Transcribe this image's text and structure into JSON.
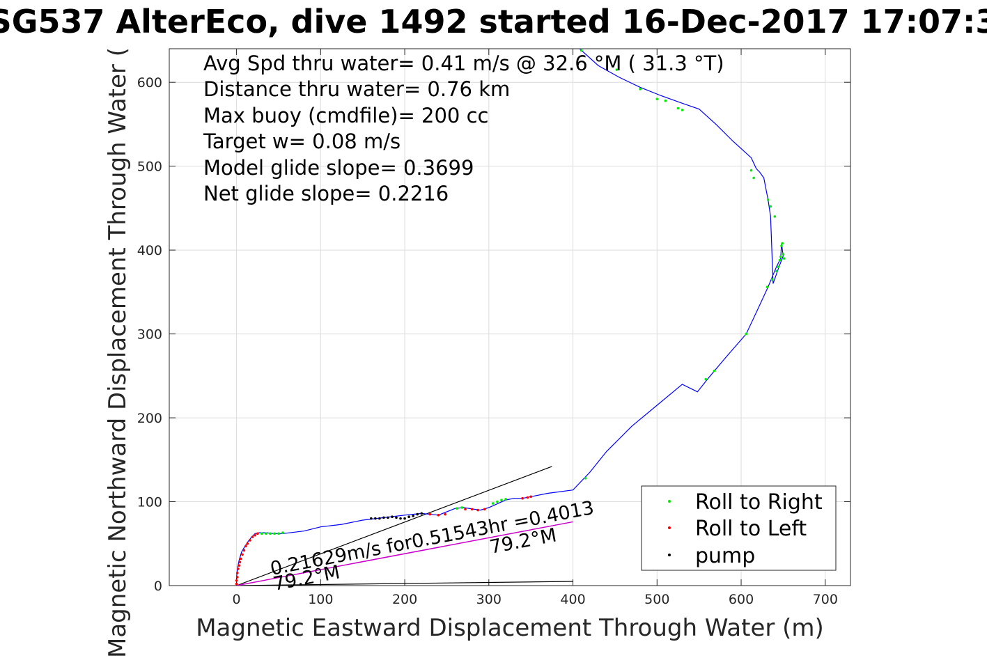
{
  "title": "SG537 AlterEco, dive 1492 started 16-Dec-2017 17:07:3",
  "annotations": [
    "Avg Spd thru water=  0.41 m/s @  32.6 °M ( 31.3 °T)",
    "Distance thru water=  0.76 km",
    "Max buoy (cmdfile)= 200 cc",
    "Target w= 0.08 m/s",
    "Model glide slope= 0.3699",
    "Net glide slope= 0.2216"
  ],
  "plot_texts": {
    "current": "0.21629m/s for0.51543hr =0.4013",
    "heading_1": "79.2°M",
    "heading_2": "79.2°M"
  },
  "legend": {
    "right": "Roll to Right",
    "left": "Roll to Left",
    "pump": "pump"
  },
  "colors": {
    "track": "#0000ff",
    "roll_right": "#00ee00",
    "roll_left": "#ff0000",
    "pump": "#000000",
    "current_line": "#cc00cc",
    "grid": "#dcdcdc"
  },
  "chart_data": {
    "type": "scatter",
    "xlabel": "Magnetic Eastward Displacement Through Water (m)",
    "ylabel": "Magnetic Northward Displacement Through Water (",
    "xlim": [
      -80,
      730
    ],
    "ylim": [
      0,
      640
    ],
    "xticks": [
      0,
      100,
      200,
      300,
      400,
      500,
      600,
      700
    ],
    "yticks": [
      0,
      100,
      200,
      300,
      400,
      500,
      600
    ],
    "grid": true,
    "legend_position": "bottom-right",
    "track": {
      "x": [
        0,
        0,
        1,
        3,
        6,
        10,
        14,
        18,
        22,
        27,
        35,
        45,
        55,
        80,
        100,
        125,
        150,
        175,
        200,
        210,
        220,
        240,
        260,
        270,
        290,
        300,
        320,
        330,
        340,
        350,
        370,
        400,
        420,
        440,
        470,
        500,
        530,
        548,
        560,
        580,
        606,
        620,
        632,
        642,
        647,
        648,
        650,
        645,
        638,
        635,
        632,
        630,
        627,
        622,
        618,
        612,
        590,
        570,
        550,
        530,
        505,
        480,
        455,
        430,
        408
      ],
      "y": [
        0,
        10,
        20,
        30,
        40,
        47,
        53,
        58,
        62,
        63,
        63,
        62,
        62,
        65,
        70,
        73,
        78,
        81,
        84,
        85,
        86,
        84,
        92,
        93,
        90,
        93,
        102,
        104,
        104,
        106,
        110,
        114,
        135,
        160,
        190,
        215,
        240,
        231,
        246,
        270,
        300,
        330,
        356,
        380,
        390,
        408,
        393,
        380,
        360,
        440,
        460,
        470,
        486,
        493,
        497,
        510,
        530,
        550,
        568,
        575,
        584,
        594,
        606,
        620,
        640
      ]
    },
    "roll_right": {
      "x": [
        30,
        35,
        40,
        45,
        50,
        55,
        262,
        268,
        305,
        310,
        315,
        320,
        415,
        558,
        568,
        606,
        631,
        637,
        642,
        644,
        646,
        647,
        648,
        649,
        650,
        651,
        612,
        615,
        632,
        635,
        640,
        500,
        510,
        525,
        530,
        480,
        452,
        410
      ],
      "y": [
        62,
        62,
        62,
        62,
        62,
        63,
        92,
        93,
        98,
        100,
        102,
        103,
        128,
        246,
        256,
        300,
        356,
        365,
        375,
        380,
        388,
        392,
        405,
        408,
        395,
        390,
        495,
        486,
        460,
        452,
        440,
        580,
        578,
        569,
        567,
        592,
        615,
        638
      ],
      "note": "approximate"
    },
    "roll_left": {
      "x": [
        0,
        0,
        1,
        1,
        2,
        3,
        4,
        5,
        7,
        9,
        11,
        13,
        16,
        19,
        22,
        25,
        230,
        240,
        248,
        272,
        280,
        287,
        295,
        340,
        346,
        350
      ],
      "y": [
        2,
        6,
        10,
        15,
        20,
        24,
        28,
        32,
        37,
        42,
        47,
        50,
        54,
        58,
        60,
        62,
        85,
        84,
        85,
        91,
        91,
        90,
        91,
        104,
        105,
        106
      ]
    },
    "pump": {
      "x": [
        160,
        165,
        170,
        175,
        180,
        185,
        190,
        195,
        200,
        205,
        210,
        215,
        220
      ],
      "y": [
        80,
        80,
        80,
        81,
        81,
        82,
        81,
        80,
        80,
        82,
        83,
        85,
        86
      ]
    },
    "current_vector": {
      "from": [
        0,
        0
      ],
      "to": [
        400,
        76
      ]
    },
    "glide_lines": [
      {
        "from": [
          0,
          0
        ],
        "to": [
          375,
          142
        ]
      },
      {
        "from": [
          0,
          0
        ],
        "to": [
          400,
          5
        ]
      }
    ]
  }
}
